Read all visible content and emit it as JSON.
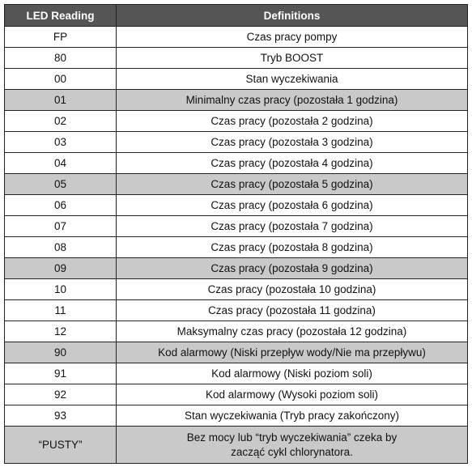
{
  "table": {
    "header": [
      "LED Reading",
      "Definitions"
    ],
    "rows": [
      [
        "FP",
        "Czas pracy pompy"
      ],
      [
        "80",
        "Tryb BOOST"
      ],
      [
        "00",
        "Stan wyczekiwania"
      ],
      [
        "01",
        "Minimalny czas pracy (pozostała 1 godzina)"
      ],
      [
        "02",
        "Czas pracy (pozostała 2 godzina)"
      ],
      [
        "03",
        "Czas pracy (pozostała 3 godzina)"
      ],
      [
        "04",
        "Czas pracy (pozostała 4 godzina)"
      ],
      [
        "05",
        "Czas pracy (pozostała 5 godzina)"
      ],
      [
        "06",
        "Czas pracy (pozostała 6 godzina)"
      ],
      [
        "07",
        "Czas pracy (pozostała 7 godzina)"
      ],
      [
        "08",
        "Czas pracy (pozostała 8 godzina)"
      ],
      [
        "09",
        "Czas pracy (pozostała 9 godzina)"
      ],
      [
        "10",
        "Czas pracy (pozostała 10 godzina)"
      ],
      [
        "11",
        "Czas pracy (pozostała 11 godzina)"
      ],
      [
        "12",
        "Maksymalny czas pracy (pozostała 12 godzina)"
      ],
      [
        "90",
        "Kod alarmowy (Niski przepływ wody/Nie ma przepływu)"
      ],
      [
        "91",
        "Kod alarmowy (Niski poziom soli)"
      ],
      [
        "92",
        "Kod alarmowy (Wysoki poziom soli)"
      ],
      [
        "93",
        "Stan wyczekiwania (Tryb pracy zakończony)"
      ],
      [
        "“PUSTY”",
        "Bez mocy lub “tryb wyczekiwania” czeka by\nzacząć cykl chlorynatora."
      ]
    ]
  }
}
